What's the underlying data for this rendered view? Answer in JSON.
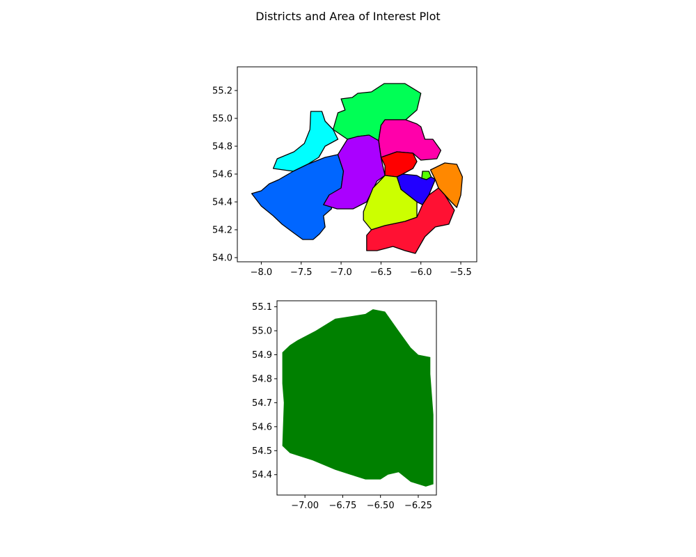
{
  "title": "Districts and Area of Interest Plot",
  "chart_data": [
    {
      "type": "map",
      "panel": "districts",
      "xlim": [
        -8.3,
        -5.3
      ],
      "ylim": [
        53.97,
        55.37
      ],
      "xticks": [
        -8.0,
        -7.5,
        -7.0,
        -6.5,
        -6.0,
        -5.5
      ],
      "xtick_labels": [
        "−8.0",
        "−7.5",
        "−7.0",
        "−6.5",
        "−6.0",
        "−5.5"
      ],
      "yticks": [
        54.0,
        54.2,
        54.4,
        54.6,
        54.8,
        55.0,
        55.2
      ],
      "ytick_labels": [
        "54.0",
        "54.2",
        "54.4",
        "54.6",
        "54.8",
        "55.0",
        "55.2"
      ],
      "outline_color": "#000000",
      "regions": [
        {
          "fill": "#00FF55",
          "points": [
            [
              -7.04,
              55.04
            ],
            [
              -7.1,
              54.92
            ],
            [
              -6.92,
              54.85
            ],
            [
              -6.79,
              54.87
            ],
            [
              -6.65,
              54.88
            ],
            [
              -6.53,
              54.84
            ],
            [
              -6.5,
              54.95
            ],
            [
              -6.45,
              54.99
            ],
            [
              -6.19,
              54.99
            ],
            [
              -6.05,
              55.06
            ],
            [
              -6.0,
              55.18
            ],
            [
              -6.2,
              55.25
            ],
            [
              -6.46,
              55.25
            ],
            [
              -6.62,
              55.19
            ],
            [
              -6.79,
              55.18
            ],
            [
              -6.86,
              55.15
            ],
            [
              -7.0,
              55.14
            ],
            [
              -6.95,
              55.06
            ]
          ]
        },
        {
          "fill": "#00FFFF",
          "points": [
            [
              -7.38,
              55.05
            ],
            [
              -7.24,
              55.05
            ],
            [
              -7.2,
              54.98
            ],
            [
              -7.1,
              54.92
            ],
            [
              -7.04,
              54.85
            ],
            [
              -7.2,
              54.8
            ],
            [
              -7.28,
              54.72
            ],
            [
              -7.42,
              54.67
            ],
            [
              -7.6,
              54.62
            ],
            [
              -7.85,
              54.64
            ],
            [
              -7.8,
              54.71
            ],
            [
              -7.59,
              54.76
            ],
            [
              -7.46,
              54.82
            ],
            [
              -7.39,
              54.92
            ]
          ]
        },
        {
          "fill": "#FF00AA",
          "points": [
            [
              -6.53,
              54.84
            ],
            [
              -6.5,
              54.95
            ],
            [
              -6.45,
              54.99
            ],
            [
              -6.19,
              54.99
            ],
            [
              -6.05,
              54.96
            ],
            [
              -6.0,
              54.94
            ],
            [
              -5.95,
              54.85
            ],
            [
              -5.85,
              54.85
            ],
            [
              -5.75,
              54.77
            ],
            [
              -5.8,
              54.71
            ],
            [
              -6.0,
              54.7
            ],
            [
              -6.1,
              54.75
            ],
            [
              -6.3,
              54.76
            ],
            [
              -6.5,
              54.72
            ]
          ]
        },
        {
          "fill": "#0066FF",
          "points": [
            [
              -7.04,
              54.74
            ],
            [
              -7.2,
              54.72
            ],
            [
              -7.42,
              54.67
            ],
            [
              -7.6,
              54.62
            ],
            [
              -7.78,
              54.56
            ],
            [
              -7.9,
              54.53
            ],
            [
              -8.0,
              54.48
            ],
            [
              -8.12,
              54.46
            ],
            [
              -8.0,
              54.37
            ],
            [
              -7.85,
              54.3
            ],
            [
              -7.74,
              54.24
            ],
            [
              -7.6,
              54.18
            ],
            [
              -7.48,
              54.13
            ],
            [
              -7.35,
              54.13
            ],
            [
              -7.27,
              54.17
            ],
            [
              -7.2,
              54.22
            ],
            [
              -7.22,
              54.3
            ],
            [
              -7.12,
              54.35
            ],
            [
              -7.12,
              54.42
            ],
            [
              -7.0,
              54.5
            ],
            [
              -6.97,
              54.62
            ]
          ]
        },
        {
          "fill": "#AA00FF",
          "points": [
            [
              -6.79,
              54.87
            ],
            [
              -6.92,
              54.85
            ],
            [
              -7.04,
              54.74
            ],
            [
              -6.97,
              54.62
            ],
            [
              -7.0,
              54.5
            ],
            [
              -7.15,
              54.45
            ],
            [
              -7.22,
              54.38
            ],
            [
              -7.05,
              54.35
            ],
            [
              -6.85,
              54.35
            ],
            [
              -6.68,
              54.4
            ],
            [
              -6.55,
              54.55
            ],
            [
              -6.45,
              54.59
            ],
            [
              -6.5,
              54.72
            ],
            [
              -6.53,
              54.84
            ],
            [
              -6.65,
              54.88
            ]
          ]
        },
        {
          "fill": "#FF0000",
          "points": [
            [
              -6.5,
              54.72
            ],
            [
              -6.3,
              54.76
            ],
            [
              -6.1,
              54.75
            ],
            [
              -6.05,
              54.69
            ],
            [
              -6.1,
              54.64
            ],
            [
              -6.23,
              54.6
            ],
            [
              -6.3,
              54.58
            ],
            [
              -6.45,
              54.59
            ],
            [
              -6.45,
              54.66
            ]
          ]
        },
        {
          "fill": "#55FF00",
          "points": [
            [
              -5.98,
              54.62
            ],
            [
              -5.9,
              54.62
            ],
            [
              -5.87,
              54.58
            ],
            [
              -5.93,
              54.56
            ],
            [
              -5.99,
              54.57
            ]
          ]
        },
        {
          "fill": "#2200FF",
          "points": [
            [
              -6.3,
              54.58
            ],
            [
              -6.23,
              54.6
            ],
            [
              -6.05,
              54.59
            ],
            [
              -5.99,
              54.57
            ],
            [
              -5.93,
              54.56
            ],
            [
              -5.87,
              54.58
            ],
            [
              -5.82,
              54.56
            ],
            [
              -5.9,
              54.45
            ],
            [
              -5.98,
              54.38
            ],
            [
              -6.05,
              54.4
            ],
            [
              -6.25,
              54.49
            ]
          ]
        },
        {
          "fill": "#FF8800",
          "points": [
            [
              -5.88,
              54.63
            ],
            [
              -5.7,
              54.68
            ],
            [
              -5.55,
              54.67
            ],
            [
              -5.48,
              54.58
            ],
            [
              -5.5,
              54.45
            ],
            [
              -5.55,
              54.36
            ],
            [
              -5.62,
              54.4
            ],
            [
              -5.7,
              54.45
            ],
            [
              -5.78,
              54.5
            ],
            [
              -5.82,
              54.56
            ]
          ]
        },
        {
          "fill": "#CCFF00",
          "points": [
            [
              -6.45,
              54.59
            ],
            [
              -6.3,
              54.58
            ],
            [
              -6.25,
              54.49
            ],
            [
              -6.05,
              54.4
            ],
            [
              -6.05,
              54.29
            ],
            [
              -6.2,
              54.26
            ],
            [
              -6.45,
              54.23
            ],
            [
              -6.62,
              54.2
            ],
            [
              -6.72,
              54.27
            ],
            [
              -6.72,
              54.33
            ],
            [
              -6.6,
              54.5
            ]
          ]
        },
        {
          "fill": "#FF1133",
          "points": [
            [
              -5.9,
              54.45
            ],
            [
              -5.98,
              54.38
            ],
            [
              -6.05,
              54.29
            ],
            [
              -6.2,
              54.26
            ],
            [
              -6.45,
              54.23
            ],
            [
              -6.62,
              54.2
            ],
            [
              -6.68,
              54.16
            ],
            [
              -6.68,
              54.05
            ],
            [
              -6.55,
              54.05
            ],
            [
              -6.35,
              54.08
            ],
            [
              -6.2,
              54.05
            ],
            [
              -6.07,
              54.03
            ],
            [
              -5.95,
              54.15
            ],
            [
              -5.82,
              54.22
            ],
            [
              -5.65,
              54.24
            ],
            [
              -5.58,
              54.34
            ],
            [
              -5.7,
              54.45
            ],
            [
              -5.78,
              54.5
            ]
          ]
        }
      ]
    },
    {
      "type": "map",
      "panel": "area-of-interest",
      "xlim": [
        -7.185,
        -6.13
      ],
      "ylim": [
        54.315,
        55.125
      ],
      "xticks": [
        -7.0,
        -6.75,
        -6.5,
        -6.25
      ],
      "xtick_labels": [
        "−7.00",
        "−6.75",
        "−6.50",
        "−6.25"
      ],
      "yticks": [
        54.4,
        54.5,
        54.6,
        54.7,
        54.8,
        54.9,
        55.0,
        55.1
      ],
      "ytick_labels": [
        "54.4",
        "54.5",
        "54.6",
        "54.7",
        "54.8",
        "54.9",
        "55.0",
        "55.1"
      ],
      "fill": "#008000",
      "points": [
        [
          -7.1,
          54.94
        ],
        [
          -7.05,
          54.96
        ],
        [
          -6.93,
          55.0
        ],
        [
          -6.8,
          55.05
        ],
        [
          -6.6,
          55.07
        ],
        [
          -6.55,
          55.09
        ],
        [
          -6.47,
          55.08
        ],
        [
          -6.38,
          55.0
        ],
        [
          -6.3,
          54.93
        ],
        [
          -6.25,
          54.9
        ],
        [
          -6.17,
          54.89
        ],
        [
          -6.17,
          54.82
        ],
        [
          -6.15,
          54.65
        ],
        [
          -6.15,
          54.6
        ],
        [
          -6.15,
          54.5
        ],
        [
          -6.15,
          54.45
        ],
        [
          -6.15,
          54.36
        ],
        [
          -6.2,
          54.35
        ],
        [
          -6.3,
          54.37
        ],
        [
          -6.38,
          54.41
        ],
        [
          -6.45,
          54.4
        ],
        [
          -6.5,
          54.38
        ],
        [
          -6.6,
          54.38
        ],
        [
          -6.7,
          54.4
        ],
        [
          -6.8,
          54.42
        ],
        [
          -6.95,
          54.46
        ],
        [
          -7.05,
          54.48
        ],
        [
          -7.1,
          54.49
        ],
        [
          -7.15,
          54.52
        ],
        [
          -7.14,
          54.7
        ],
        [
          -7.15,
          54.78
        ],
        [
          -7.15,
          54.91
        ]
      ]
    }
  ]
}
